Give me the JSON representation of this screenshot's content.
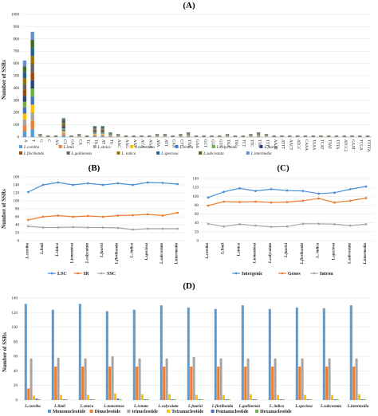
{
  "colors": {
    "species": [
      "#5b9bd5",
      "#ed7d31",
      "#a5a5a5",
      "#ffc000",
      "#4472c4",
      "#70ad47",
      "#264478",
      "#9e480e",
      "#636363",
      "#997300",
      "#255e91",
      "#43682b",
      "#698ed0",
      "#f1975a"
    ],
    "ab_lines": [
      "#4a90d9",
      "#ed7d31",
      "#a5a5a5"
    ],
    "d_types": [
      "#5b9bd5",
      "#ed7d31",
      "#a5a5a5",
      "#ffc000",
      "#4472c4",
      "#70ad47"
    ]
  },
  "panels": {
    "A": {
      "label": "(A)",
      "ylabel": "Number of SSRs"
    },
    "B": {
      "label": "(B)",
      "ylabel": "Number of SSRs"
    },
    "C": {
      "label": "(C)"
    },
    "D": {
      "label": "(D)",
      "ylabel": "Number of SSRs"
    }
  },
  "chart_data": [
    {
      "type": "bar",
      "stacked": true,
      "title": "(A)",
      "ylabel": "Number of SSRs",
      "ylim": [
        0,
        1000
      ],
      "yticks": [
        0,
        100,
        200,
        300,
        400,
        500,
        600,
        700,
        800,
        900,
        1000
      ],
      "categories": [
        "A",
        "T",
        "G",
        "C",
        "AG",
        "CT",
        "GA",
        "CA",
        "TC",
        "TA",
        "AT",
        "TG",
        "AAC",
        "AAG",
        "AAT",
        "ACA",
        "AGA",
        "ATA",
        "ATT",
        "CAA",
        "CTT",
        "TTA",
        "GAA",
        "GCT",
        "GGA",
        "GTA",
        "TAA",
        "TAC",
        "TCT",
        "TTC",
        "TTG",
        "TTT",
        "AAAT",
        "ATTT",
        "AACT",
        "ATCC",
        "CAAA",
        "TAAA",
        "TCAT",
        "TTAT",
        "TTTA",
        "ATCC2",
        "GAAT",
        "TCGA",
        "TTTTA"
      ],
      "series": [
        {
          "name": "L.coreiba",
          "values": [
            48,
            66,
            2,
            1,
            1,
            12,
            1,
            2,
            1,
            7,
            7,
            3,
            2,
            1,
            1,
            1,
            1,
            2,
            2,
            1,
            2,
            3,
            1,
            1,
            1,
            1,
            2,
            1,
            1,
            2,
            3,
            2,
            1,
            1,
            1,
            1,
            1,
            1,
            1,
            1,
            1,
            1,
            1,
            1,
            1
          ]
        },
        {
          "name": "L.limii",
          "values": [
            48,
            66,
            2,
            1,
            1,
            12,
            1,
            2,
            1,
            7,
            7,
            3,
            2,
            1,
            1,
            1,
            1,
            2,
            2,
            1,
            2,
            3,
            1,
            1,
            1,
            1,
            2,
            1,
            1,
            2,
            3,
            2,
            1,
            1,
            1,
            1,
            1,
            1,
            1,
            1,
            1,
            1,
            1,
            1,
            1
          ]
        },
        {
          "name": "L.sinica",
          "values": [
            48,
            66,
            2,
            1,
            1,
            12,
            1,
            2,
            1,
            7,
            7,
            3,
            2,
            1,
            1,
            1,
            1,
            2,
            2,
            1,
            2,
            3,
            1,
            1,
            1,
            1,
            2,
            1,
            1,
            2,
            3,
            2,
            1,
            1,
            1,
            1,
            1,
            1,
            1,
            1,
            1,
            1,
            1,
            1,
            1
          ]
        },
        {
          "name": "L.tomentosa",
          "values": [
            48,
            66,
            2,
            1,
            1,
            12,
            1,
            2,
            1,
            7,
            7,
            3,
            2,
            1,
            1,
            1,
            1,
            2,
            2,
            1,
            2,
            3,
            1,
            1,
            1,
            1,
            2,
            1,
            1,
            2,
            3,
            2,
            1,
            1,
            1,
            1,
            1,
            1,
            1,
            1,
            1,
            1,
            1,
            1,
            1
          ]
        },
        {
          "name": "L.renata",
          "values": [
            48,
            66,
            2,
            1,
            1,
            12,
            1,
            2,
            1,
            7,
            7,
            3,
            2,
            1,
            1,
            1,
            1,
            2,
            2,
            1,
            2,
            3,
            1,
            1,
            1,
            1,
            2,
            1,
            1,
            2,
            3,
            2,
            1,
            1,
            1,
            1,
            1,
            1,
            1,
            1,
            1,
            1,
            1,
            1,
            1
          ]
        },
        {
          "name": "L.calycaiata",
          "values": [
            48,
            66,
            2,
            1,
            1,
            12,
            1,
            2,
            1,
            7,
            7,
            3,
            2,
            1,
            1,
            1,
            1,
            2,
            2,
            1,
            2,
            3,
            1,
            1,
            1,
            1,
            2,
            1,
            1,
            2,
            3,
            2,
            1,
            1,
            1,
            1,
            1,
            1,
            1,
            1,
            1,
            1,
            1,
            1,
            1
          ]
        },
        {
          "name": "L.faurisi",
          "values": [
            48,
            66,
            2,
            1,
            1,
            12,
            1,
            2,
            1,
            7,
            7,
            3,
            2,
            1,
            1,
            1,
            1,
            2,
            2,
            1,
            2,
            3,
            1,
            1,
            1,
            1,
            2,
            1,
            1,
            2,
            3,
            2,
            1,
            1,
            1,
            1,
            1,
            1,
            1,
            1,
            1,
            1,
            1,
            1,
            1
          ]
        },
        {
          "name": "L.floribunda",
          "values": [
            48,
            66,
            2,
            1,
            1,
            12,
            1,
            2,
            1,
            7,
            7,
            3,
            2,
            1,
            1,
            1,
            1,
            2,
            2,
            1,
            2,
            3,
            1,
            1,
            1,
            1,
            2,
            1,
            1,
            2,
            3,
            2,
            1,
            1,
            1,
            1,
            1,
            1,
            1,
            1,
            1,
            1,
            1,
            1,
            1
          ]
        },
        {
          "name": "L.guilinensis",
          "values": [
            48,
            66,
            2,
            1,
            1,
            12,
            1,
            2,
            1,
            7,
            7,
            3,
            2,
            1,
            1,
            1,
            1,
            2,
            2,
            1,
            2,
            3,
            1,
            1,
            1,
            1,
            2,
            1,
            1,
            2,
            3,
            2,
            1,
            1,
            1,
            1,
            1,
            1,
            1,
            1,
            1,
            1,
            1,
            1,
            1
          ]
        },
        {
          "name": "L. indica",
          "values": [
            48,
            66,
            2,
            1,
            1,
            12,
            1,
            2,
            1,
            7,
            7,
            3,
            2,
            1,
            1,
            1,
            1,
            2,
            2,
            1,
            2,
            3,
            1,
            1,
            1,
            1,
            2,
            1,
            1,
            2,
            3,
            2,
            1,
            1,
            1,
            1,
            1,
            1,
            1,
            1,
            1,
            1,
            1,
            1,
            1
          ]
        },
        {
          "name": "L.speciosa",
          "values": [
            48,
            66,
            2,
            1,
            1,
            12,
            1,
            2,
            1,
            7,
            7,
            3,
            2,
            1,
            1,
            1,
            1,
            2,
            2,
            1,
            2,
            3,
            1,
            1,
            1,
            1,
            2,
            1,
            1,
            2,
            3,
            2,
            1,
            1,
            1,
            1,
            1,
            1,
            1,
            1,
            1,
            1,
            1,
            1,
            1
          ]
        },
        {
          "name": "L.subcostata",
          "values": [
            48,
            66,
            2,
            1,
            1,
            12,
            1,
            2,
            1,
            7,
            7,
            3,
            2,
            1,
            1,
            1,
            1,
            2,
            2,
            1,
            2,
            3,
            1,
            1,
            1,
            1,
            2,
            1,
            1,
            2,
            3,
            2,
            1,
            1,
            1,
            1,
            1,
            1,
            1,
            1,
            1,
            1,
            1,
            1,
            1
          ]
        },
        {
          "name": "L.intermedia",
          "values": [
            48,
            66,
            2,
            1,
            1,
            12,
            1,
            2,
            1,
            7,
            7,
            3,
            2,
            1,
            1,
            1,
            1,
            2,
            2,
            1,
            2,
            3,
            1,
            1,
            1,
            1,
            2,
            1,
            1,
            2,
            3,
            2,
            1,
            1,
            1,
            1,
            1,
            1,
            1,
            1,
            1,
            1,
            1,
            1,
            1
          ]
        }
      ],
      "legend": [
        "L.coreiba",
        "L.limii",
        "L.sinica",
        "L.tomentosa",
        "L.renata",
        "L.calycaiata",
        "L.faurisi",
        "L.floribunda",
        "L.guilinensis",
        "L. indica",
        "L.speciosa",
        "L.subcostata",
        "L.intermedia"
      ],
      "legend_position": "bottom"
    },
    {
      "type": "line",
      "title": "(B)",
      "ylabel": "Number of SSRs",
      "ylim": [
        0,
        160
      ],
      "yticks": [
        0,
        20,
        40,
        60,
        80,
        100,
        120,
        140,
        160
      ],
      "categories": [
        "L.coreiba",
        "L.limii",
        "L.sinica",
        "L.tomentosa",
        "L.calycaiata",
        "L.faurisi",
        "L.floribunda",
        "L. indica",
        "L.speciosa",
        "L.subcostata",
        "L.intermedia"
      ],
      "series": [
        {
          "name": "LSC",
          "values": [
            122,
            140,
            146,
            140,
            144,
            140,
            144,
            140,
            146,
            145,
            142
          ]
        },
        {
          "name": "IR",
          "values": [
            52,
            60,
            63,
            60,
            62,
            60,
            63,
            64,
            66,
            63,
            70
          ]
        },
        {
          "name": "SSC",
          "values": [
            36,
            33,
            33,
            34,
            33,
            33,
            32,
            28,
            30,
            30,
            30
          ]
        }
      ],
      "legend_position": "bottom"
    },
    {
      "type": "line",
      "title": "(C)",
      "ylabel": "",
      "ylim": [
        0,
        140
      ],
      "yticks": [
        0,
        20,
        40,
        60,
        80,
        100,
        120,
        140
      ],
      "categories": [
        "L.coreiba",
        "L.limii",
        "L.sinica",
        "L.tomentosa",
        "L.calycaiata",
        "L.faurisi",
        "L.floribunda",
        "L. indica",
        "L.speciosa",
        "L.subcostata",
        "L.intermedia"
      ],
      "series": [
        {
          "name": "Intergenic",
          "values": [
            97,
            110,
            118,
            112,
            116,
            113,
            112,
            106,
            108,
            116,
            122
          ]
        },
        {
          "name": "Genes",
          "values": [
            79,
            88,
            87,
            88,
            86,
            87,
            90,
            95,
            86,
            90,
            96
          ]
        },
        {
          "name": "Intron",
          "values": [
            38,
            32,
            37,
            34,
            31,
            32,
            38,
            38,
            37,
            34,
            37
          ]
        }
      ],
      "legend_position": "bottom"
    },
    {
      "type": "bar",
      "title": "(D)",
      "ylabel": "Number of SSRs",
      "ylim": [
        0,
        140
      ],
      "yticks": [
        0,
        20,
        40,
        60,
        80,
        100,
        120,
        140
      ],
      "categories": [
        "L.coreiba",
        "L.limii",
        "L.sinica",
        "L.tomentosa",
        "L.renata",
        "L.calycaiata",
        "L.faurisi",
        "L.floribunda",
        "L.guilinensis",
        "L. indica",
        "L.speciosa",
        "L.subcostata",
        "L.intermedia"
      ],
      "series": [
        {
          "name": "Mononucleotide",
          "values": [
            132,
            124,
            132,
            122,
            124,
            130,
            127,
            125,
            130,
            125,
            127,
            126,
            130
          ]
        },
        {
          "name": "Dinucleotide",
          "values": [
            16,
            46,
            46,
            46,
            46,
            46,
            46,
            46,
            46,
            46,
            46,
            46,
            46
          ]
        },
        {
          "name": "trinucleotide",
          "values": [
            57,
            58,
            57,
            60,
            57,
            57,
            59,
            57,
            57,
            57,
            57,
            57,
            57
          ]
        },
        {
          "name": "Tetranucleotide",
          "values": [
            6,
            7,
            7,
            9,
            8,
            8,
            7,
            7,
            8,
            7,
            7,
            7,
            8
          ]
        },
        {
          "name": "Pentanucleotide",
          "values": [
            2,
            1,
            1,
            2,
            1,
            1,
            1,
            1,
            1,
            1,
            1,
            1,
            1
          ]
        },
        {
          "name": "Hexanucleotide",
          "values": [
            1,
            1,
            1,
            1,
            1,
            1,
            1,
            1,
            1,
            1,
            1,
            1,
            1
          ]
        }
      ],
      "legend_position": "bottom"
    }
  ]
}
